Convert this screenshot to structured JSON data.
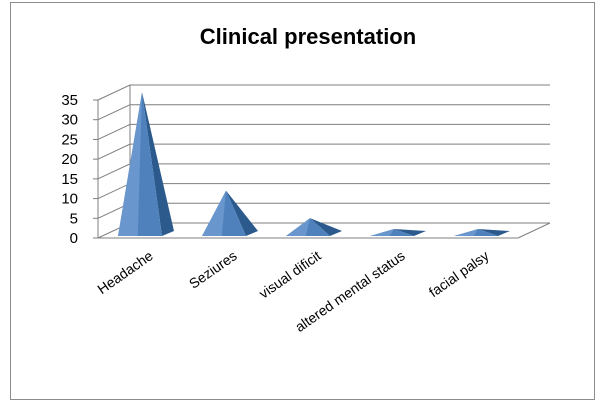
{
  "chart_data": {
    "type": "bar",
    "subtype": "3d-pyramid",
    "title": "Clinical presentation",
    "categories": [
      "Headache",
      "Seziures",
      "visual dificit",
      "altered mental status",
      "facial palsy"
    ],
    "values": [
      35,
      10,
      3,
      0,
      0
    ],
    "yticks": [
      "0",
      "5",
      "10",
      "15",
      "20",
      "25",
      "30",
      "35"
    ],
    "ylim": [
      0,
      35
    ],
    "grid": true,
    "legend": "none",
    "colors": {
      "pyramid": "#4f81bd",
      "pyramid_dark": "#2c5a8c",
      "pyramid_light": "#7ea7da",
      "grid": "#7f7f7f"
    }
  }
}
